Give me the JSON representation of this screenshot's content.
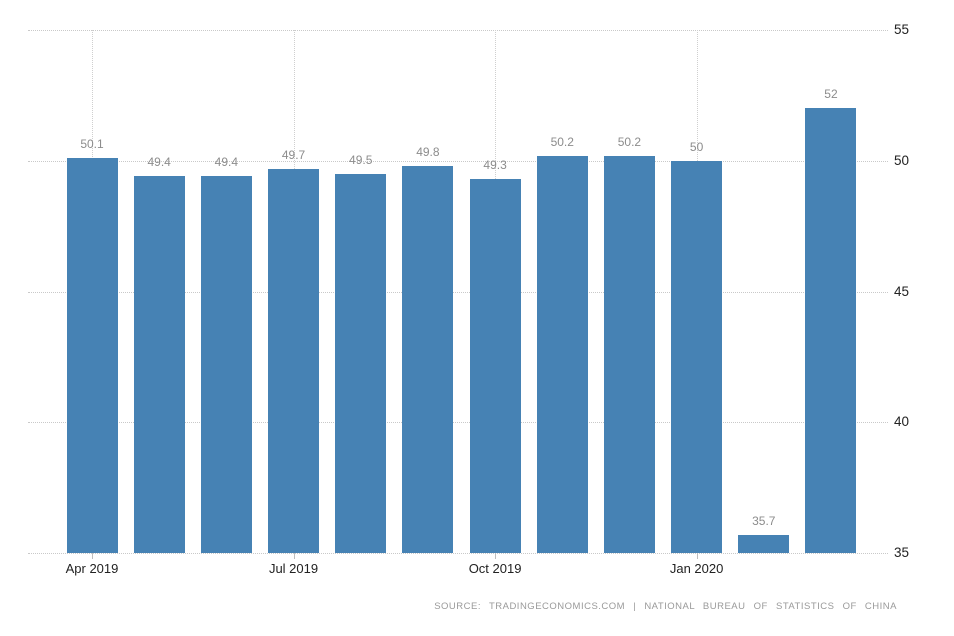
{
  "chart_data": {
    "type": "bar",
    "values": [
      50.1,
      49.4,
      49.4,
      49.7,
      49.5,
      49.8,
      49.3,
      50.2,
      50.2,
      50,
      35.7,
      52
    ],
    "bar_labels": [
      "50.1",
      "49.4",
      "49.4",
      "49.7",
      "49.5",
      "49.8",
      "49.3",
      "50.2",
      "50.2",
      "50",
      "35.7",
      "52"
    ],
    "x_tick_labels": [
      "Apr 2019",
      "Jul 2019",
      "Oct 2019",
      "Jan 2020"
    ],
    "x_tick_bar_indices": [
      0,
      3,
      6,
      9
    ],
    "y_tick_labels": [
      "55",
      "50",
      "45",
      "40",
      "35"
    ],
    "y_ticks": [
      55,
      50,
      45,
      40,
      35
    ],
    "ylim": [
      35,
      55
    ],
    "title": "",
    "xlabel": "",
    "ylabel": "",
    "legend": "none",
    "grid": "dotted horizontal gridlines at y ticks; dotted vertical gridlines at quarterly x ticks",
    "y_axis_side": "right",
    "colors": {
      "bar": "#4682b4",
      "value_label": "#8c8c8c",
      "axis_label": "#222222",
      "gridline": "#c9c9c9",
      "source_text": "#9a9a9a"
    }
  },
  "footer": {
    "source_text": "SOURCE: TRADINGECONOMICS.COM | NATIONAL BUREAU OF STATISTICS OF CHINA"
  }
}
